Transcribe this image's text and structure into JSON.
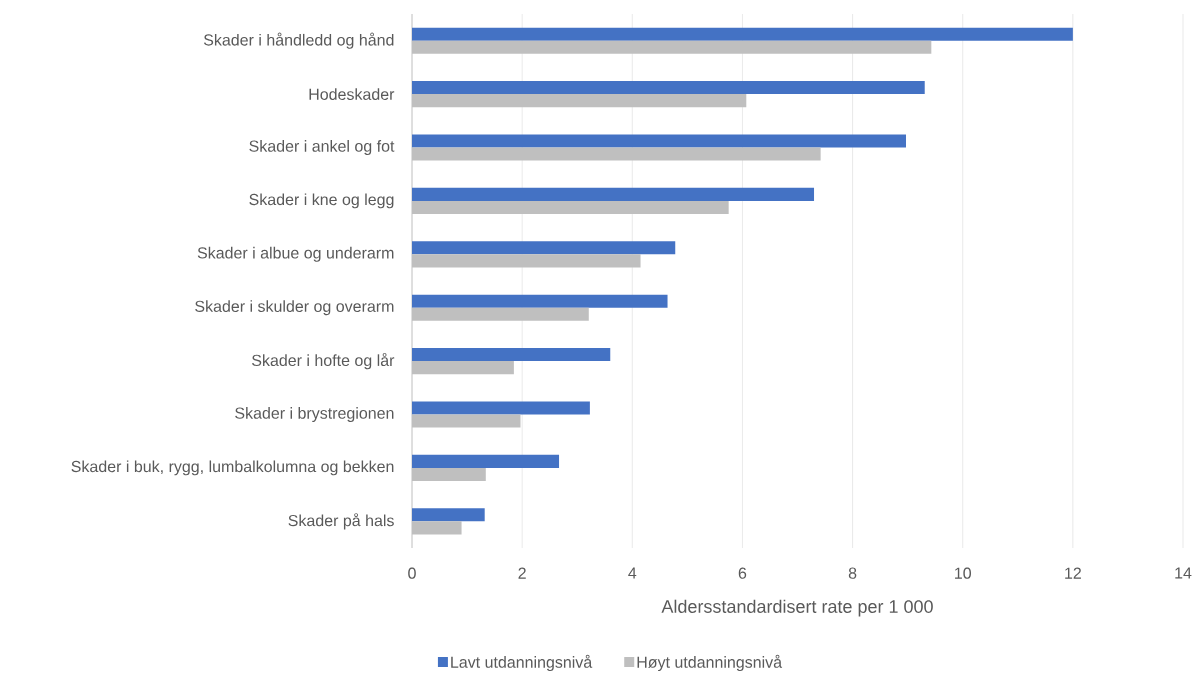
{
  "chart_data": {
    "type": "bar",
    "orientation": "horizontal",
    "xlabel": "Aldersstandardisert rate per 1 000",
    "categories": [
      "Skader i håndledd og hånd",
      "Hodeskader",
      "Skader i ankel og fot",
      "Skader i kne og legg",
      "Skader i albue og underarm",
      "Skader i skulder og overarm",
      "Skader i hofte og lår",
      "Skader i brystregionen",
      "Skader i buk, rygg, lumbalkolumna og bekken",
      "Skader på hals"
    ],
    "series": [
      {
        "name": "Lavt utdanningsnivå",
        "color": "#4472c4",
        "values": [
          12.0,
          9.31,
          8.97,
          7.3,
          4.78,
          4.64,
          3.6,
          3.23,
          2.67,
          1.32
        ]
      },
      {
        "name": "Høyt utdanningsnivå",
        "color": "#bfbfbf",
        "values": [
          9.43,
          6.07,
          7.42,
          5.75,
          4.15,
          3.21,
          1.85,
          1.97,
          1.34,
          0.9
        ]
      }
    ],
    "xlim": [
      0,
      14
    ],
    "xticks": [
      0,
      2,
      4,
      6,
      8,
      10,
      12,
      14
    ],
    "grid": "x",
    "legend": "bottom"
  }
}
